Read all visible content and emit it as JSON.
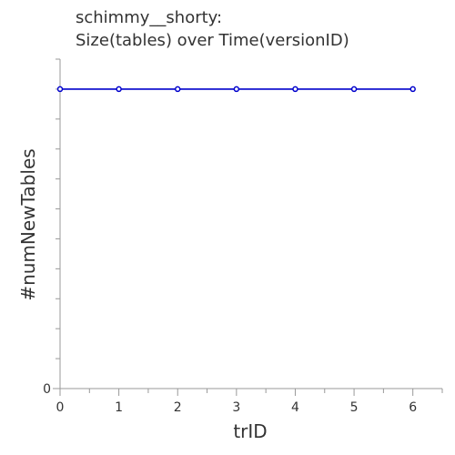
{
  "chart_data": {
    "type": "line",
    "title_line1": "schimmy__shorty:",
    "title_line2": "Size(tables) over Time(versionID)",
    "xlabel": "trID",
    "ylabel": "#numNewTables",
    "x": [
      0,
      1,
      2,
      3,
      4,
      5,
      6
    ],
    "series": [
      {
        "values": [
          10,
          10,
          10,
          10,
          10,
          10,
          10
        ]
      }
    ],
    "xlim": [
      0,
      6.5
    ],
    "ylim": [
      0,
      11
    ],
    "x_tick_labels": [
      "0",
      "1",
      "2",
      "3",
      "4",
      "5",
      "6"
    ],
    "y_tick_labels": [
      "0"
    ],
    "grid": false,
    "line_color": "#0000cc",
    "axis_color": "#999999"
  }
}
